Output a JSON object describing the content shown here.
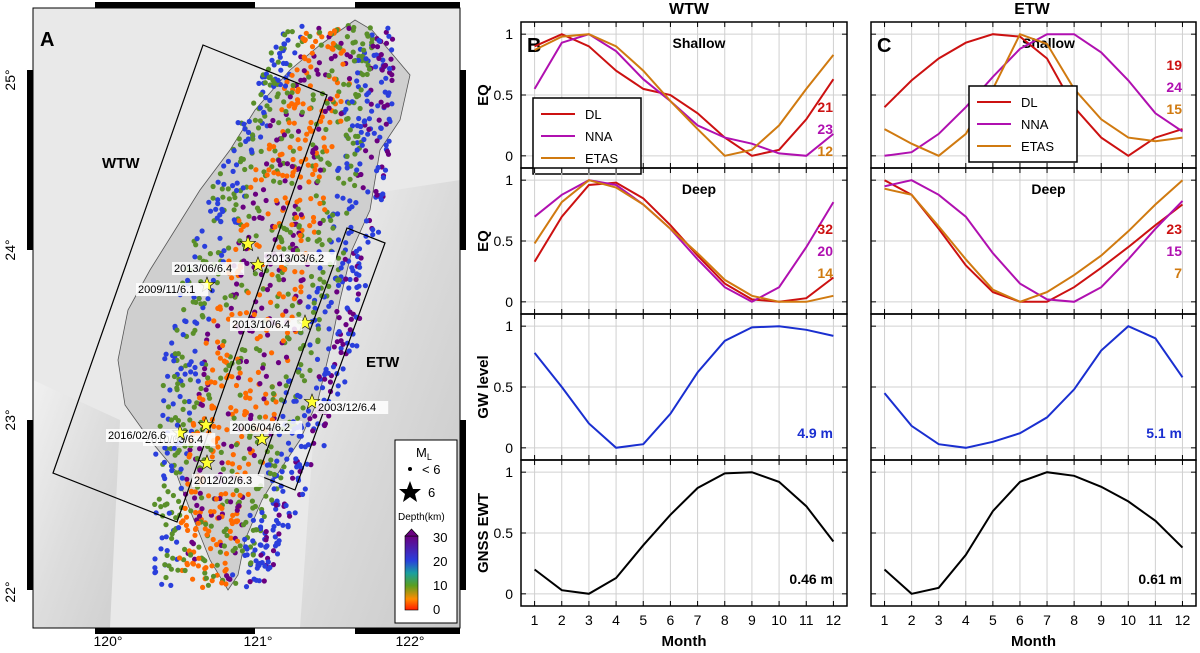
{
  "map": {
    "panel_label": "A",
    "lon_ticks": [
      "120°",
      "121°",
      "122°"
    ],
    "lat_ticks": [
      "25°",
      "24°",
      "23°",
      "22°"
    ],
    "regions": {
      "west": "WTW",
      "east": "ETW"
    },
    "events": [
      {
        "label": "2013/06/6.4"
      },
      {
        "label": "2013/03/6.2"
      },
      {
        "label": "2009/11/6.1"
      },
      {
        "label": "2013/10/6.4"
      },
      {
        "label": "2003/12/6.4"
      },
      {
        "label": "2010/03/6.4"
      },
      {
        "label": "2016/02/6.6"
      },
      {
        "label": "2006/04/6.2"
      },
      {
        "label": "2012/02/6.3"
      }
    ],
    "legend": {
      "ml_title": "M",
      "ml_sub": "L",
      "small_label": "< 6",
      "star_label": "6",
      "depth_title": "Depth(km)",
      "depth_ticks": [
        "30",
        "20",
        "10",
        "0"
      ]
    },
    "colors": {
      "depth_deep": "#6a0080",
      "depth_mid": "#2a3fdc",
      "depth_shallow_mid": "#5a8f2a",
      "depth_shallow": "#ff6a00",
      "star": "#ffff33"
    }
  },
  "chart_data": [
    {
      "type": "line",
      "panel": "B",
      "column_title": "WTW",
      "subtitle": "Shallow",
      "ylabel": "EQ",
      "xlabel": "",
      "ylim": [
        -0.1,
        1.1
      ],
      "x": [
        1,
        2,
        3,
        4,
        5,
        6,
        7,
        8,
        9,
        10,
        11,
        12
      ],
      "yticks": [
        "0",
        "0.5",
        "1"
      ],
      "series": [
        {
          "name": "DL",
          "color": "#cc1111",
          "values": [
            0.9,
            1.0,
            0.9,
            0.7,
            0.55,
            0.5,
            0.35,
            0.15,
            0.0,
            0.05,
            0.3,
            0.63
          ]
        },
        {
          "name": "NNA",
          "color": "#b010b0",
          "values": [
            0.55,
            0.93,
            1.0,
            0.86,
            0.63,
            0.45,
            0.25,
            0.15,
            0.1,
            0.02,
            0.0,
            0.18
          ]
        },
        {
          "name": "ETAS",
          "color": "#d07a10",
          "values": [
            0.87,
            0.98,
            1.0,
            0.9,
            0.7,
            0.45,
            0.22,
            0.0,
            0.05,
            0.25,
            0.55,
            0.83
          ]
        }
      ],
      "annotations": [
        {
          "text": "21",
          "color": "#cc1111"
        },
        {
          "text": "23",
          "color": "#b010b0"
        },
        {
          "text": "12",
          "color": "#d07a10"
        }
      ],
      "legend": "inside-lower-left"
    },
    {
      "type": "line",
      "panel": "C",
      "column_title": "ETW",
      "subtitle": "Shallow",
      "ylabel": "",
      "xlabel": "",
      "ylim": [
        -0.1,
        1.1
      ],
      "x": [
        1,
        2,
        3,
        4,
        5,
        6,
        7,
        8,
        9,
        10,
        11,
        12
      ],
      "series": [
        {
          "name": "DL",
          "color": "#cc1111",
          "values": [
            0.4,
            0.62,
            0.8,
            0.93,
            1.0,
            0.98,
            0.8,
            0.4,
            0.15,
            0.0,
            0.15,
            0.22
          ]
        },
        {
          "name": "NNA",
          "color": "#b010b0",
          "values": [
            0.0,
            0.03,
            0.18,
            0.4,
            0.65,
            0.88,
            1.0,
            1.0,
            0.85,
            0.62,
            0.35,
            0.2
          ]
        },
        {
          "name": "ETAS",
          "color": "#d07a10",
          "values": [
            0.22,
            0.1,
            0.0,
            0.18,
            0.55,
            1.0,
            0.92,
            0.55,
            0.3,
            0.15,
            0.12,
            0.15
          ]
        }
      ],
      "annotations": [
        {
          "text": "19",
          "color": "#cc1111"
        },
        {
          "text": "24",
          "color": "#b010b0"
        },
        {
          "text": "15",
          "color": "#d07a10"
        }
      ],
      "legend": "inside-top-center"
    },
    {
      "type": "line",
      "subtitle": "Deep",
      "ylabel": "EQ",
      "xlabel": "",
      "ylim": [
        -0.1,
        1.1
      ],
      "x": [
        1,
        2,
        3,
        4,
        5,
        6,
        7,
        8,
        9,
        10,
        11,
        12
      ],
      "yticks": [
        "0",
        "0.5",
        "1"
      ],
      "series": [
        {
          "name": "DL",
          "color": "#cc1111",
          "values": [
            0.33,
            0.7,
            0.96,
            0.98,
            0.85,
            0.63,
            0.38,
            0.15,
            0.02,
            0.0,
            0.03,
            0.2
          ]
        },
        {
          "name": "NNA",
          "color": "#b010b0",
          "values": [
            0.7,
            0.88,
            1.0,
            0.96,
            0.8,
            0.6,
            0.35,
            0.12,
            0.0,
            0.12,
            0.45,
            0.82
          ]
        },
        {
          "name": "ETAS",
          "color": "#d07a10",
          "values": [
            0.48,
            0.82,
            1.0,
            0.94,
            0.8,
            0.6,
            0.4,
            0.18,
            0.05,
            0.0,
            0.0,
            0.05
          ]
        }
      ],
      "annotations": [
        {
          "text": "32",
          "color": "#cc1111"
        },
        {
          "text": "20",
          "color": "#b010b0"
        },
        {
          "text": "14",
          "color": "#d07a10"
        }
      ]
    },
    {
      "type": "line",
      "subtitle": "Deep",
      "ylabel": "",
      "xlabel": "",
      "ylim": [
        -0.1,
        1.1
      ],
      "x": [
        1,
        2,
        3,
        4,
        5,
        6,
        7,
        8,
        9,
        10,
        11,
        12
      ],
      "series": [
        {
          "name": "DL",
          "color": "#cc1111",
          "values": [
            1.0,
            0.88,
            0.6,
            0.3,
            0.08,
            0.0,
            0.0,
            0.12,
            0.28,
            0.45,
            0.63,
            0.8
          ]
        },
        {
          "name": "NNA",
          "color": "#b010b0",
          "values": [
            0.95,
            1.0,
            0.88,
            0.7,
            0.4,
            0.15,
            0.02,
            0.0,
            0.12,
            0.35,
            0.6,
            0.83
          ]
        },
        {
          "name": "ETAS",
          "color": "#d07a10",
          "values": [
            0.93,
            0.88,
            0.62,
            0.35,
            0.1,
            0.0,
            0.08,
            0.22,
            0.38,
            0.58,
            0.8,
            1.0
          ]
        }
      ],
      "annotations": [
        {
          "text": "23",
          "color": "#cc1111"
        },
        {
          "text": "15",
          "color": "#b010b0"
        },
        {
          "text": "7",
          "color": "#d07a10"
        }
      ]
    },
    {
      "type": "line",
      "ylabel": "GW level",
      "xlabel": "",
      "ylim": [
        -0.1,
        1.1
      ],
      "x": [
        1,
        2,
        3,
        4,
        5,
        6,
        7,
        8,
        9,
        10,
        11,
        12
      ],
      "yticks": [
        "0",
        "0.5",
        "1"
      ],
      "series": [
        {
          "color": "#1a2fd0",
          "values": [
            0.78,
            0.5,
            0.2,
            0.0,
            0.03,
            0.28,
            0.62,
            0.88,
            0.99,
            1.0,
            0.97,
            0.92
          ]
        }
      ],
      "annotations": [
        {
          "text": "4.9 m",
          "color": "#1a2fd0"
        }
      ]
    },
    {
      "type": "line",
      "ylabel": "",
      "xlabel": "",
      "ylim": [
        -0.1,
        1.1
      ],
      "x": [
        1,
        2,
        3,
        4,
        5,
        6,
        7,
        8,
        9,
        10,
        11,
        12
      ],
      "series": [
        {
          "color": "#1a2fd0",
          "values": [
            0.45,
            0.18,
            0.03,
            0.0,
            0.05,
            0.12,
            0.25,
            0.48,
            0.8,
            1.0,
            0.9,
            0.58
          ]
        }
      ],
      "annotations": [
        {
          "text": "5.1 m",
          "color": "#1a2fd0"
        }
      ]
    },
    {
      "type": "line",
      "ylabel": "GNSS EWT",
      "xlabel": "Month",
      "ylim": [
        -0.1,
        1.1
      ],
      "x": [
        1,
        2,
        3,
        4,
        5,
        6,
        7,
        8,
        9,
        10,
        11,
        12
      ],
      "xticks": [
        "1",
        "2",
        "3",
        "4",
        "5",
        "6",
        "7",
        "8",
        "9",
        "10",
        "11",
        "12"
      ],
      "yticks": [
        "0",
        "0.5",
        "1"
      ],
      "series": [
        {
          "color": "#000000",
          "values": [
            0.2,
            0.03,
            0.0,
            0.13,
            0.4,
            0.65,
            0.87,
            0.99,
            1.0,
            0.92,
            0.72,
            0.43
          ]
        }
      ],
      "annotations": [
        {
          "text": "0.46 m",
          "color": "#000000"
        }
      ]
    },
    {
      "type": "line",
      "ylabel": "",
      "xlabel": "Month",
      "ylim": [
        -0.1,
        1.1
      ],
      "x": [
        1,
        2,
        3,
        4,
        5,
        6,
        7,
        8,
        9,
        10,
        11,
        12
      ],
      "xticks": [
        "1",
        "2",
        "3",
        "4",
        "5",
        "6",
        "7",
        "8",
        "9",
        "10",
        "11",
        "12"
      ],
      "series": [
        {
          "color": "#000000",
          "values": [
            0.2,
            0.0,
            0.05,
            0.32,
            0.68,
            0.92,
            1.0,
            0.97,
            0.88,
            0.76,
            0.6,
            0.38
          ]
        }
      ],
      "annotations": [
        {
          "text": "0.61 m",
          "color": "#000000"
        }
      ]
    }
  ]
}
